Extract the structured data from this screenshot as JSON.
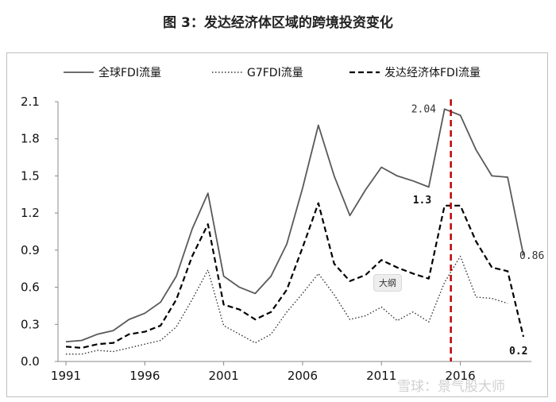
{
  "title": "图 3：发达经济体区域的跨境投资变化",
  "chart_data": {
    "type": "line",
    "title": "图 3：发达经济体区域的跨境投资变化",
    "xlabel": "",
    "ylabel": "",
    "x": [
      1991,
      1992,
      1993,
      1994,
      1995,
      1996,
      1997,
      1998,
      1999,
      2000,
      2001,
      2002,
      2003,
      2004,
      2005,
      2006,
      2007,
      2008,
      2009,
      2010,
      2011,
      2012,
      2013,
      2014,
      2015,
      2016,
      2017,
      2018,
      2019,
      2020
    ],
    "xticks": [
      "1991",
      "1996",
      "2001",
      "2006",
      "2011",
      "2016"
    ],
    "ylim": [
      0,
      2.1
    ],
    "yticks": [
      "0.0",
      "0.3",
      "0.6",
      "0.9",
      "1.2",
      "1.5",
      "1.8",
      "2.1"
    ],
    "legend_position": "top",
    "series": [
      {
        "name": "全球FDI流量",
        "style": "solid",
        "color": "#595959",
        "values": [
          0.16,
          0.17,
          0.22,
          0.25,
          0.34,
          0.39,
          0.48,
          0.69,
          1.07,
          1.36,
          0.69,
          0.6,
          0.55,
          0.69,
          0.95,
          1.4,
          1.91,
          1.5,
          1.18,
          1.39,
          1.57,
          1.5,
          1.46,
          1.41,
          2.04,
          1.99,
          1.71,
          1.5,
          1.49,
          0.86
        ]
      },
      {
        "name": "G7FDI流量",
        "style": "dotted",
        "color": "#333333",
        "values": [
          0.06,
          0.06,
          0.09,
          0.08,
          0.11,
          0.14,
          0.17,
          0.28,
          0.5,
          0.74,
          0.29,
          0.22,
          0.15,
          0.22,
          0.4,
          0.55,
          0.71,
          0.54,
          0.34,
          0.37,
          0.44,
          0.33,
          0.4,
          0.32,
          0.64,
          0.85,
          0.52,
          0.51,
          0.47,
          null
        ]
      },
      {
        "name": "发达经济体FDI流量",
        "style": "dashed",
        "color": "#000000",
        "values": [
          0.12,
          0.11,
          0.14,
          0.15,
          0.22,
          0.24,
          0.29,
          0.5,
          0.85,
          1.11,
          0.46,
          0.42,
          0.34,
          0.4,
          0.58,
          0.92,
          1.28,
          0.79,
          0.65,
          0.7,
          0.82,
          0.76,
          0.71,
          0.67,
          1.26,
          1.26,
          0.97,
          0.76,
          0.73,
          0.2
        ]
      }
    ],
    "annotations": [
      {
        "text": "2.04",
        "x": 2015,
        "y": 2.04
      },
      {
        "text": "1.3",
        "x": 2015,
        "y": 1.26
      },
      {
        "text": "0.86",
        "x": 2020,
        "y": 0.86
      },
      {
        "text": "0.2",
        "x": 2020,
        "y": 0.2
      }
    ],
    "marker_line": {
      "x": 2015.4,
      "color": "#c00000",
      "style": "dashed"
    }
  },
  "badge_text": "大纲",
  "watermark": "雪球：景气股大师"
}
